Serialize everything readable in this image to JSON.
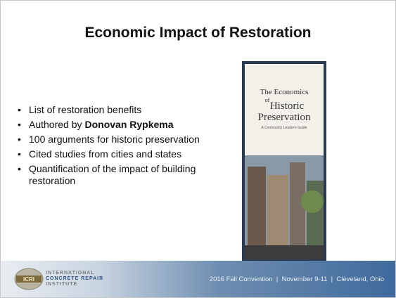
{
  "header": {
    "title": "Economic Impact of Restoration"
  },
  "bullets": [
    {
      "text": "List of restoration benefits"
    },
    {
      "text": "Authored by",
      "bold": "Donovan Rypkema"
    },
    {
      "text": "100 arguments for historic preservation"
    },
    {
      "text": "Cited studies from cities and states"
    },
    {
      "text": "Quantification of the impact of building restoration"
    }
  ],
  "book": {
    "title_lines": [
      "The Economics",
      "of",
      "Historic",
      "Preservation"
    ],
    "subtitle": "A Community Leader's Guide"
  },
  "footer": {
    "logo_mark": "ICRI",
    "logo_lines": [
      "INTERNATIONAL",
      "CONCRETE REPAIR",
      "INSTITUTE"
    ],
    "event": "2016 Fall Convention  |  November 9-11  |  Cleveland, Ohio"
  }
}
